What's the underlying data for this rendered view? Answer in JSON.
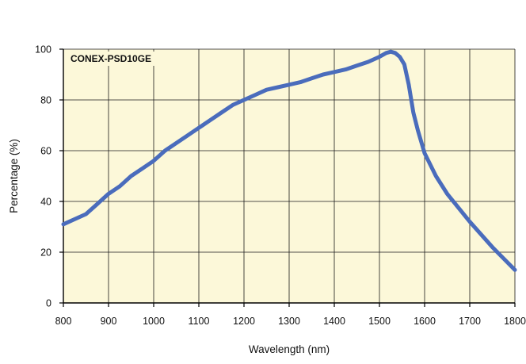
{
  "colors": {
    "plot_background": "#fcf8d9",
    "grid": "#1a1a1a",
    "series_line": "#4a6cbc"
  },
  "chart_data": {
    "type": "line",
    "title": "",
    "inset_label": "CONEX-PSD10GE",
    "xlabel": "Wavelength (nm)",
    "ylabel": "Percentage (%)",
    "xlim": [
      800,
      1800
    ],
    "ylim": [
      0,
      100
    ],
    "x_ticks": [
      800,
      900,
      1000,
      1100,
      1200,
      1300,
      1400,
      1500,
      1600,
      1700,
      1800
    ],
    "y_ticks": [
      0,
      20,
      40,
      60,
      80,
      100
    ],
    "grid": true,
    "x_tick_labels": [
      "800",
      "900",
      "1000",
      "1100",
      "1200",
      "1300",
      "1400",
      "1500",
      "1600",
      "1700",
      "1800"
    ],
    "y_tick_labels": [
      "0",
      "20",
      "40",
      "60",
      "80",
      "100"
    ],
    "series": [
      {
        "x": [
          800,
          825,
          850,
          875,
          900,
          925,
          950,
          975,
          1000,
          1025,
          1050,
          1075,
          1100,
          1125,
          1150,
          1175,
          1200,
          1225,
          1250,
          1275,
          1300,
          1325,
          1350,
          1375,
          1400,
          1425,
          1450,
          1475,
          1500,
          1515,
          1525,
          1535,
          1545,
          1555,
          1565,
          1575,
          1585,
          1600,
          1625,
          1650,
          1700,
          1750,
          1800
        ],
        "y": [
          31,
          33,
          35,
          39,
          43,
          46,
          50,
          53,
          56,
          60,
          63,
          66,
          69,
          72,
          75,
          78,
          80,
          82,
          84,
          85,
          86,
          87,
          88.5,
          90,
          91,
          92,
          93.5,
          95,
          97,
          98.5,
          99,
          98.5,
          97,
          94,
          86,
          75,
          68,
          59,
          50,
          43,
          32,
          22,
          13
        ]
      }
    ]
  }
}
